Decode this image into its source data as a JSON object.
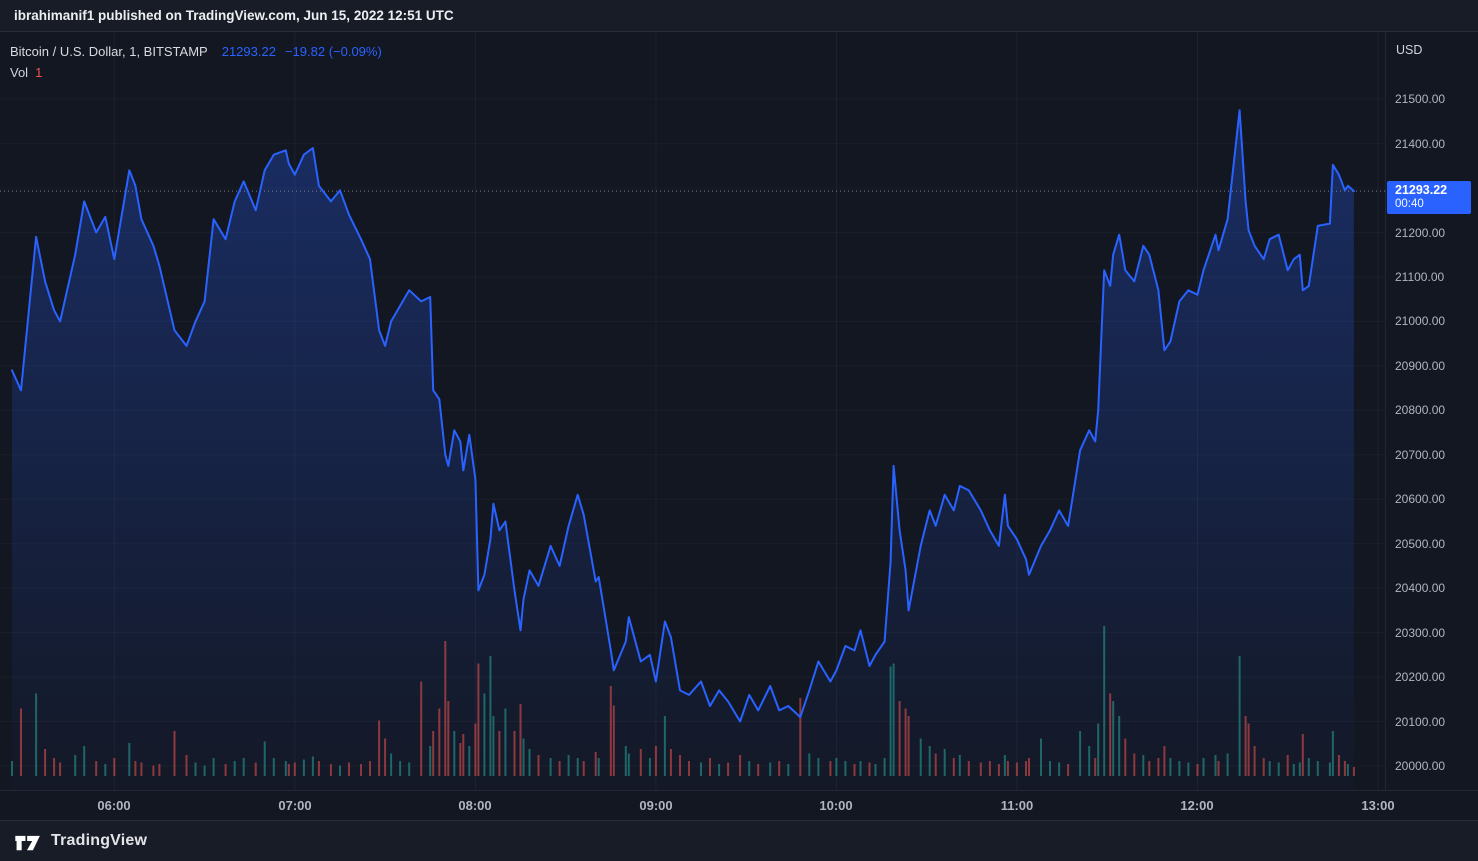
{
  "topbar": {
    "publish_text": "ibrahimanif1 published on TradingView.com, Jun 15, 2022 12:51 UTC"
  },
  "header": {
    "symbol_line": "Bitcoin / U.S. Dollar, 1, BITSTAMP",
    "last_price": "21293.22",
    "change": "−19.82 (−0.09%)",
    "vol_label": "Vol",
    "vol_value": "1"
  },
  "axis": {
    "currency": "USD",
    "price_badge": {
      "price": "21293.22",
      "countdown": "00:40"
    }
  },
  "footer": {
    "brand": "TradingView"
  },
  "colors": {
    "accent": "#2962ff",
    "up": "#26a69a",
    "down": "#ef5350",
    "bg": "#131722",
    "panel": "#181c27",
    "border": "#2a2e39",
    "grid": "rgba(240,243,250,0.05)",
    "grid_h": "rgba(240,243,250,0.03)",
    "last_price_line": "#9598a1"
  },
  "chart_data": {
    "type": "line",
    "title": "Bitcoin / U.S. Dollar, 1, BITSTAMP",
    "interval": "1 minute",
    "x_unit": "minutes after midnight UTC, Jun 15 2022",
    "last_price": 21293.22,
    "change": -19.82,
    "change_pct": -0.09,
    "xlim": [
      326,
      780
    ],
    "ylim": [
      19946,
      21651
    ],
    "x_ticks": [
      {
        "t": 360,
        "label": "06:00"
      },
      {
        "t": 420,
        "label": "07:00"
      },
      {
        "t": 480,
        "label": "08:00"
      },
      {
        "t": 540,
        "label": "09:00"
      },
      {
        "t": 600,
        "label": "10:00"
      },
      {
        "t": 660,
        "label": "11:00"
      },
      {
        "t": 720,
        "label": "12:00"
      },
      {
        "t": 780,
        "label": "13:00"
      }
    ],
    "y_ticks": [
      {
        "v": 21500,
        "label": "21500.00"
      },
      {
        "v": 21400,
        "label": "21400.00"
      },
      {
        "v": 21200,
        "label": "21200.00"
      },
      {
        "v": 21100,
        "label": "21100.00"
      },
      {
        "v": 21000,
        "label": "21000.00"
      },
      {
        "v": 20900,
        "label": "20900.00"
      },
      {
        "v": 20800,
        "label": "20800.00"
      },
      {
        "v": 20700,
        "label": "20700.00"
      },
      {
        "v": 20600,
        "label": "20600.00"
      },
      {
        "v": 20500,
        "label": "20500.00"
      },
      {
        "v": 20400,
        "label": "20400.00"
      },
      {
        "v": 20300,
        "label": "20300.00"
      },
      {
        "v": 20200,
        "label": "20200.00"
      },
      {
        "v": 20100,
        "label": "20100.00"
      },
      {
        "v": 20000,
        "label": "20000.00"
      }
    ],
    "grid_levels": [
      20000,
      20100,
      20200,
      20300,
      20400,
      20500,
      20600,
      20700,
      20800,
      20900,
      21000,
      21100,
      21200,
      21300,
      21400,
      21500
    ],
    "volume_note": "volume values are relative height estimates, 100 = tallest bar",
    "points": [
      [
        326,
        20890,
        10
      ],
      [
        329,
        20845,
        45
      ],
      [
        334,
        21190,
        55
      ],
      [
        337,
        21090,
        18
      ],
      [
        340,
        21025,
        12
      ],
      [
        342,
        21000,
        9
      ],
      [
        347,
        21150,
        14
      ],
      [
        350,
        21270,
        20
      ],
      [
        354,
        21200,
        10
      ],
      [
        357,
        21235,
        8
      ],
      [
        360,
        21140,
        12
      ],
      [
        365,
        21340,
        22
      ],
      [
        367,
        21305,
        10
      ],
      [
        369,
        21230,
        9
      ],
      [
        373,
        21170,
        7
      ],
      [
        375,
        21125,
        8
      ],
      [
        380,
        20980,
        30
      ],
      [
        384,
        20945,
        14
      ],
      [
        387,
        21000,
        9
      ],
      [
        390,
        21045,
        7
      ],
      [
        393,
        21230,
        12
      ],
      [
        397,
        21185,
        8
      ],
      [
        400,
        21270,
        10
      ],
      [
        403,
        21315,
        12
      ],
      [
        407,
        21250,
        9
      ],
      [
        410,
        21340,
        23
      ],
      [
        413,
        21375,
        12
      ],
      [
        417,
        21385,
        10
      ],
      [
        418,
        21355,
        8
      ],
      [
        420,
        21330,
        9
      ],
      [
        423,
        21375,
        11
      ],
      [
        426,
        21390,
        13
      ],
      [
        428,
        21305,
        10
      ],
      [
        432,
        21270,
        8
      ],
      [
        435,
        21295,
        7
      ],
      [
        438,
        21240,
        9
      ],
      [
        442,
        21185,
        8
      ],
      [
        445,
        21140,
        10
      ],
      [
        448,
        20980,
        37
      ],
      [
        450,
        20945,
        25
      ],
      [
        452,
        21000,
        15
      ],
      [
        455,
        21035,
        10
      ],
      [
        458,
        21070,
        9
      ],
      [
        462,
        21045,
        63
      ],
      [
        465,
        21055,
        20
      ],
      [
        466,
        20845,
        30
      ],
      [
        468,
        20825,
        45
      ],
      [
        470,
        20700,
        90
      ],
      [
        471,
        20675,
        50
      ],
      [
        473,
        20755,
        30
      ],
      [
        475,
        20730,
        22
      ],
      [
        476,
        20665,
        28
      ],
      [
        478,
        20745,
        20
      ],
      [
        480,
        20645,
        35
      ],
      [
        481,
        20395,
        75
      ],
      [
        483,
        20430,
        55
      ],
      [
        485,
        20510,
        80
      ],
      [
        486,
        20590,
        40
      ],
      [
        488,
        20530,
        30
      ],
      [
        490,
        20550,
        45
      ],
      [
        493,
        20395,
        30
      ],
      [
        495,
        20305,
        48
      ],
      [
        496,
        20375,
        25
      ],
      [
        498,
        20440,
        18
      ],
      [
        501,
        20405,
        14
      ],
      [
        505,
        20495,
        12
      ],
      [
        508,
        20450,
        10
      ],
      [
        511,
        20540,
        14
      ],
      [
        514,
        20610,
        12
      ],
      [
        516,
        20565,
        10
      ],
      [
        520,
        20415,
        16
      ],
      [
        521,
        20425,
        12
      ],
      [
        525,
        20260,
        60
      ],
      [
        526,
        20215,
        47
      ],
      [
        530,
        20280,
        20
      ],
      [
        531,
        20335,
        15
      ],
      [
        535,
        20235,
        18
      ],
      [
        538,
        20250,
        12
      ],
      [
        540,
        20190,
        20
      ],
      [
        543,
        20325,
        40
      ],
      [
        545,
        20290,
        18
      ],
      [
        548,
        20170,
        14
      ],
      [
        551,
        20160,
        10
      ],
      [
        555,
        20190,
        9
      ],
      [
        558,
        20135,
        12
      ],
      [
        561,
        20170,
        8
      ],
      [
        564,
        20145,
        9
      ],
      [
        568,
        20100,
        14
      ],
      [
        571,
        20160,
        10
      ],
      [
        574,
        20125,
        8
      ],
      [
        578,
        20180,
        9
      ],
      [
        581,
        20125,
        10
      ],
      [
        584,
        20135,
        8
      ],
      [
        588,
        20110,
        52
      ],
      [
        591,
        20170,
        15
      ],
      [
        594,
        20235,
        12
      ],
      [
        598,
        20190,
        10
      ],
      [
        600,
        20215,
        12
      ],
      [
        603,
        20270,
        10
      ],
      [
        606,
        20260,
        8
      ],
      [
        608,
        20305,
        10
      ],
      [
        611,
        20225,
        9
      ],
      [
        613,
        20250,
        8
      ],
      [
        616,
        20280,
        12
      ],
      [
        618,
        20460,
        73
      ],
      [
        619,
        20675,
        75
      ],
      [
        621,
        20530,
        50
      ],
      [
        623,
        20440,
        45
      ],
      [
        624,
        20350,
        40
      ],
      [
        628,
        20495,
        25
      ],
      [
        631,
        20575,
        20
      ],
      [
        633,
        20540,
        15
      ],
      [
        636,
        20610,
        18
      ],
      [
        639,
        20575,
        12
      ],
      [
        641,
        20630,
        14
      ],
      [
        644,
        20620,
        10
      ],
      [
        648,
        20575,
        9
      ],
      [
        651,
        20530,
        10
      ],
      [
        654,
        20495,
        8
      ],
      [
        656,
        20610,
        14
      ],
      [
        657,
        20540,
        10
      ],
      [
        660,
        20510,
        9
      ],
      [
        663,
        20465,
        10
      ],
      [
        664,
        20430,
        12
      ],
      [
        668,
        20495,
        25
      ],
      [
        671,
        20530,
        10
      ],
      [
        674,
        20575,
        9
      ],
      [
        677,
        20540,
        8
      ],
      [
        681,
        20710,
        30
      ],
      [
        684,
        20755,
        20
      ],
      [
        686,
        20730,
        12
      ],
      [
        687,
        20800,
        35
      ],
      [
        689,
        21115,
        100
      ],
      [
        691,
        21080,
        55
      ],
      [
        692,
        21150,
        50
      ],
      [
        694,
        21195,
        40
      ],
      [
        696,
        21115,
        25
      ],
      [
        699,
        21090,
        15
      ],
      [
        702,
        21170,
        14
      ],
      [
        704,
        21150,
        10
      ],
      [
        707,
        21070,
        12
      ],
      [
        709,
        20935,
        20
      ],
      [
        711,
        20955,
        12
      ],
      [
        714,
        21045,
        10
      ],
      [
        717,
        21070,
        9
      ],
      [
        720,
        21060,
        8
      ],
      [
        722,
        21115,
        12
      ],
      [
        726,
        21195,
        14
      ],
      [
        727,
        21160,
        10
      ],
      [
        730,
        21230,
        15
      ],
      [
        734,
        21475,
        80
      ],
      [
        736,
        21270,
        40
      ],
      [
        737,
        21205,
        35
      ],
      [
        739,
        21170,
        20
      ],
      [
        742,
        21140,
        12
      ],
      [
        744,
        21185,
        10
      ],
      [
        747,
        21195,
        9
      ],
      [
        750,
        21115,
        14
      ],
      [
        752,
        21140,
        8
      ],
      [
        754,
        21150,
        9
      ],
      [
        755,
        21070,
        28
      ],
      [
        757,
        21080,
        12
      ],
      [
        760,
        21215,
        10
      ],
      [
        764,
        21220,
        9
      ],
      [
        765,
        21352,
        30
      ],
      [
        767,
        21330,
        14
      ],
      [
        769,
        21295,
        10
      ],
      [
        770,
        21305,
        8
      ],
      [
        772,
        21293.22,
        6
      ]
    ]
  }
}
